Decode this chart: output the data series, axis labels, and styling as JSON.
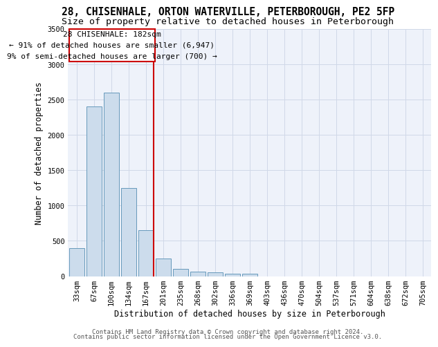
{
  "title": "28, CHISENHALE, ORTON WATERVILLE, PETERBOROUGH, PE2 5FP",
  "subtitle": "Size of property relative to detached houses in Peterborough",
  "xlabel": "Distribution of detached houses by size in Peterborough",
  "ylabel": "Number of detached properties",
  "categories": [
    "33sqm",
    "67sqm",
    "100sqm",
    "134sqm",
    "167sqm",
    "201sqm",
    "235sqm",
    "268sqm",
    "302sqm",
    "336sqm",
    "369sqm",
    "403sqm",
    "436sqm",
    "470sqm",
    "504sqm",
    "537sqm",
    "571sqm",
    "604sqm",
    "638sqm",
    "672sqm",
    "705sqm"
  ],
  "values": [
    400,
    2400,
    2600,
    1250,
    650,
    250,
    100,
    60,
    50,
    30,
    30,
    0,
    0,
    0,
    0,
    0,
    0,
    0,
    0,
    0,
    0
  ],
  "bar_color": "#ccdcec",
  "bar_edgecolor": "#6699bb",
  "background_color": "#eef2fa",
  "grid_color": "#d0d8e8",
  "vline_color": "#cc0000",
  "annotation_line1": "28 CHISENHALE: 182sqm",
  "annotation_line2": "← 91% of detached houses are smaller (6,947)",
  "annotation_line3": "9% of semi-detached houses are larger (700) →",
  "annotation_box_color": "#cc0000",
  "ylim": [
    0,
    3500
  ],
  "yticks": [
    0,
    500,
    1000,
    1500,
    2000,
    2500,
    3000,
    3500
  ],
  "footer_line1": "Contains HM Land Registry data © Crown copyright and database right 2024.",
  "footer_line2": "Contains public sector information licensed under the Open Government Licence v3.0.",
  "title_fontsize": 10.5,
  "subtitle_fontsize": 9.5,
  "axis_label_fontsize": 8.5,
  "tick_fontsize": 7.5,
  "annotation_fontsize": 8,
  "footer_fontsize": 6.5
}
